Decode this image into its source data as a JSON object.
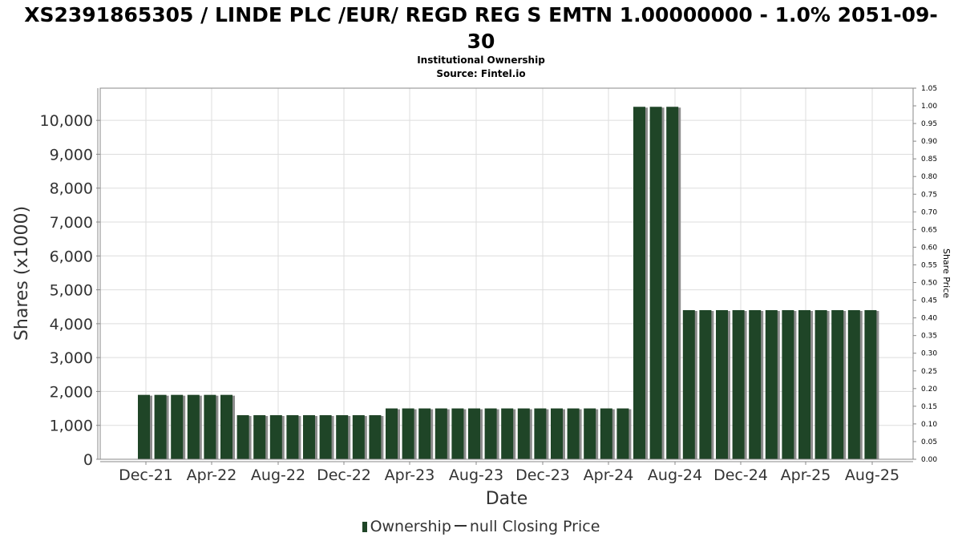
{
  "chart_data": {
    "type": "bar",
    "title": "XS2391865305 / LINDE PLC /EUR/ REGD REG S EMTN 1.00000000 - 1.0% 2051-09-30",
    "title_line1": "XS2391865305 / LINDE PLC /EUR/ REGD REG S EMTN 1.00000000 - 1.0% 2051-09-",
    "title_line2": "30",
    "subtitle": "Institutional Ownership",
    "source": "Source: Fintel.io",
    "xlabel": "Date",
    "ylabel": "Shares (x1000)",
    "ylabel_right": "Share Price",
    "ylim": [
      0,
      10950
    ],
    "ylim_right": [
      0,
      1.05
    ],
    "y_ticks": [
      "0",
      "1,000",
      "2,000",
      "3,000",
      "4,000",
      "5,000",
      "6,000",
      "7,000",
      "8,000",
      "9,000",
      "10,000"
    ],
    "y_right_ticks": [
      "0.00",
      "0.05",
      "0.10",
      "0.15",
      "0.20",
      "0.25",
      "0.30",
      "0.35",
      "0.40",
      "0.45",
      "0.50",
      "0.55",
      "0.60",
      "0.65",
      "0.70",
      "0.75",
      "0.80",
      "0.85",
      "0.90",
      "0.95",
      "1.00",
      "1.05"
    ],
    "x_tick_labels": [
      "Dec-21",
      "Apr-22",
      "Aug-22",
      "Dec-22",
      "Apr-23",
      "Aug-23",
      "Dec-23",
      "Apr-24",
      "Aug-24",
      "Dec-24",
      "Apr-25",
      "Aug-25"
    ],
    "grid": true,
    "legend_position": "bottom",
    "colors": {
      "bar": "#1f4527",
      "bar_shadow": "#8c8c8c",
      "grid": "#dddddd",
      "frame": "#888888"
    },
    "series": [
      {
        "name": "Ownership",
        "values": [
          1900,
          1900,
          1900,
          1900,
          1900,
          1900,
          1300,
          1300,
          1300,
          1300,
          1300,
          1300,
          1300,
          1300,
          1300,
          1500,
          1500,
          1500,
          1500,
          1500,
          1500,
          1500,
          1500,
          1500,
          1500,
          1500,
          1500,
          1500,
          1500,
          1500,
          10400,
          10400,
          10400,
          4400,
          4400,
          4400,
          4400,
          4400,
          4400,
          4400,
          4400,
          4400,
          4400,
          4400,
          4400
        ]
      }
    ]
  },
  "legend": {
    "ownership_label": "Ownership",
    "price_label": "null Closing Price"
  }
}
